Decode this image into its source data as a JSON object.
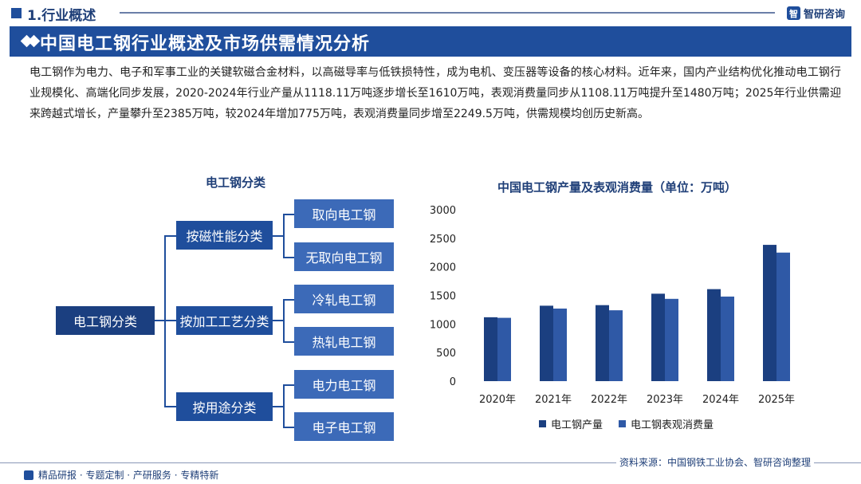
{
  "header": {
    "section": "1.行业概述",
    "logo_mark": "智",
    "logo_text": "智研咨询"
  },
  "banner": {
    "title": "中国电工钢行业概述及市场供需情况分析"
  },
  "intro": "电工钢作为电力、电子和军事工业的关键软磁合金材料，以高磁导率与低铁损特性，成为电机、变压器等设备的核心材料。近年来，国内产业结构优化推动电工钢行业规模化、高端化同步发展，2020-2024年行业产量从1118.11万吨逐步增长至1610万吨，表观消费量同步从1108.11万吨提升至1480万吨；2025年行业供需迎来跨越式增长，产量攀升至2385万吨，较2024年增加775万吨，表观消费量同步增至2249.5万吨，供需规模均创历史新高。",
  "diagram": {
    "title": "电工钢分类",
    "root": "电工钢分类",
    "groups": [
      {
        "label": "按磁性能分类",
        "items": [
          "取向电工钢",
          "无取向电工钢"
        ]
      },
      {
        "label": "按加工工艺分类",
        "items": [
          "冷轧电工钢",
          "热轧电工钢"
        ]
      },
      {
        "label": "按用途分类",
        "items": [
          "电力电工钢",
          "电子电工钢"
        ]
      }
    ]
  },
  "chart_data": {
    "type": "bar",
    "title": "中国电工钢产量及表观消费量（单位：万吨）",
    "categories": [
      "2020年",
      "2021年",
      "2022年",
      "2023年",
      "2024年",
      "2025年"
    ],
    "series": [
      {
        "name": "电工钢产量",
        "values": [
          1118.11,
          1320,
          1330,
          1530,
          1610,
          2385
        ],
        "color": "#1b3f80"
      },
      {
        "name": "电工钢表观消费量",
        "values": [
          1108.11,
          1270,
          1240,
          1440,
          1480,
          2249.5
        ],
        "color": "#2f59a6"
      }
    ],
    "ylim": [
      0,
      3000
    ],
    "yticks": [
      "3000",
      "2500",
      "2000",
      "1500",
      "1000",
      "500",
      "0"
    ],
    "legend": "bottom"
  },
  "footer": {
    "left": "精品研报 · 专题定制 · 产研服务 · 专精特新",
    "source": "资料来源：中国钢铁工业协会、智研咨询整理"
  }
}
